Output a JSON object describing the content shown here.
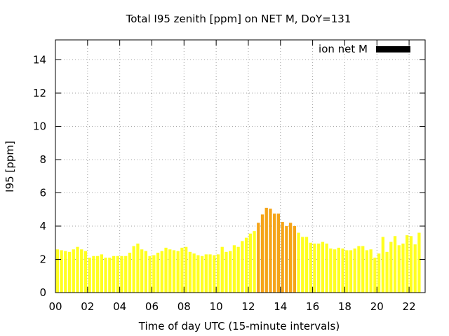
{
  "chart_data": {
    "type": "bar",
    "title": "Total I95 zenith [ppm] on NET M, DoY=131",
    "xlabel": "Time of day UTC (15-minute intervals)",
    "ylabel": "I95 [ppm]",
    "xlim": [
      0,
      23.0
    ],
    "ylim": [
      0,
      15.2
    ],
    "xticks": [
      "00",
      "02",
      "04",
      "06",
      "08",
      "10",
      "12",
      "14",
      "16",
      "18",
      "20",
      "22"
    ],
    "yticks": [
      "0",
      "2",
      "4",
      "6",
      "8",
      "10",
      "12",
      "14"
    ],
    "grid": true,
    "legend": {
      "position": "top-right",
      "label": "ion net M",
      "swatch_color": "#000000"
    },
    "bar_interval_hours": 0.25,
    "colors": {
      "low": "#ffff20",
      "medium": "#f5a418",
      "medium_threshold": 4.0
    },
    "values": [
      2.6,
      2.55,
      2.5,
      2.45,
      2.6,
      2.75,
      2.6,
      2.5,
      2.1,
      2.2,
      2.2,
      2.3,
      2.1,
      2.1,
      2.2,
      2.2,
      2.2,
      2.2,
      2.4,
      2.8,
      2.95,
      2.6,
      2.5,
      2.2,
      2.25,
      2.4,
      2.5,
      2.7,
      2.6,
      2.55,
      2.5,
      2.7,
      2.75,
      2.45,
      2.35,
      2.25,
      2.2,
      2.3,
      2.3,
      2.25,
      2.3,
      2.75,
      2.45,
      2.5,
      2.85,
      2.75,
      3.1,
      3.3,
      3.55,
      3.7,
      4.2,
      4.7,
      5.1,
      5.05,
      4.75,
      4.75,
      4.25,
      4.0,
      4.2,
      4.0,
      3.6,
      3.35,
      3.35,
      3.0,
      2.95,
      2.95,
      3.05,
      2.95,
      2.65,
      2.6,
      2.7,
      2.65,
      2.55,
      2.55,
      2.65,
      2.8,
      2.8,
      2.55,
      2.6,
      2.1,
      2.35,
      3.35,
      2.45,
      3.05,
      3.4,
      2.85,
      2.95,
      3.45,
      3.4,
      2.9,
      3.6
    ]
  }
}
